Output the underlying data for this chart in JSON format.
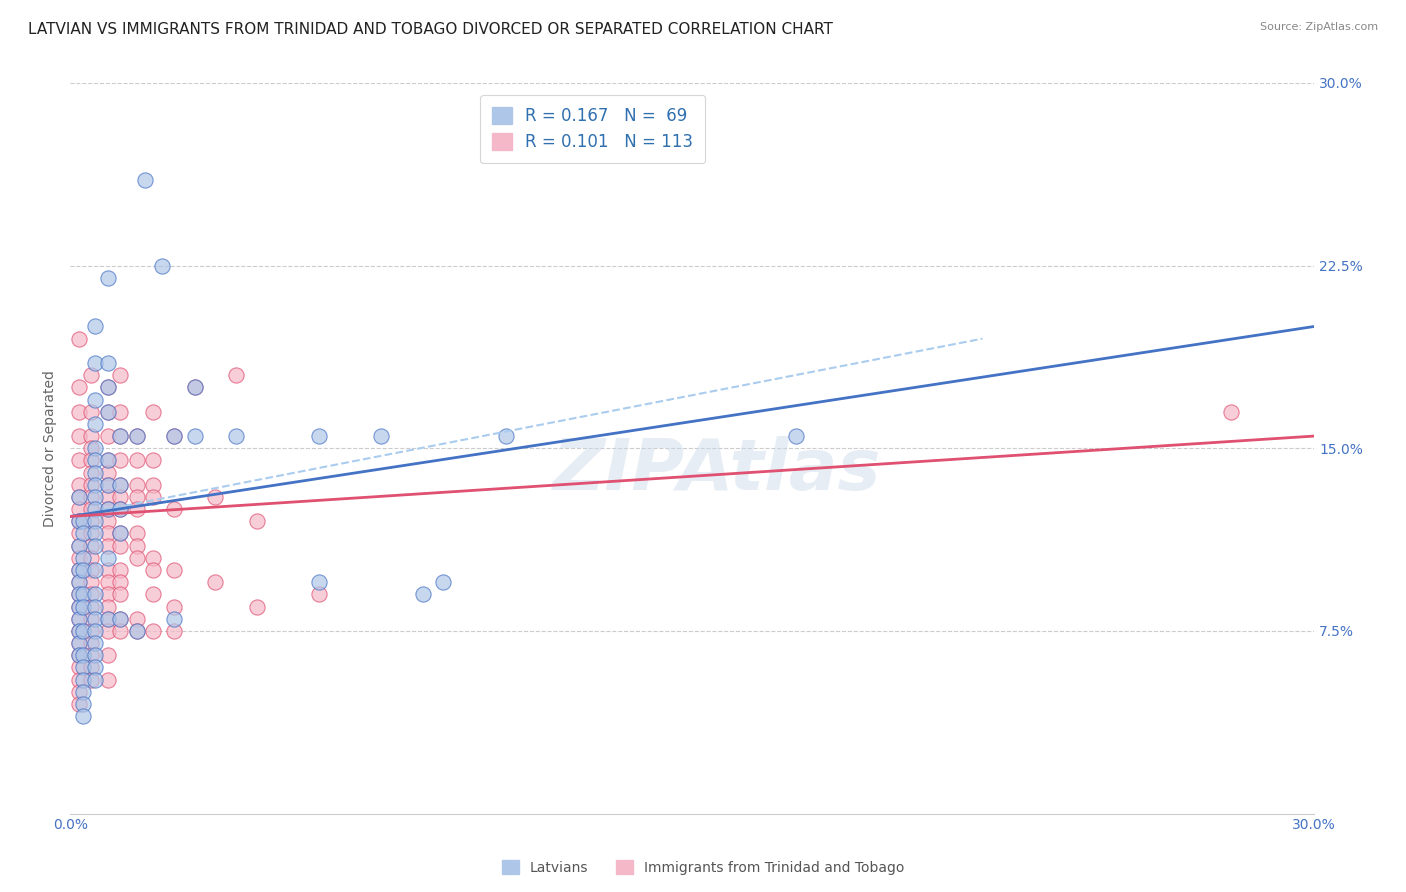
{
  "title": "LATVIAN VS IMMIGRANTS FROM TRINIDAD AND TOBAGO DIVORCED OR SEPARATED CORRELATION CHART",
  "source": "Source: ZipAtlas.com",
  "ylabel": "Divorced or Separated",
  "xlim": [
    0.0,
    0.3
  ],
  "ylim": [
    0.0,
    0.3
  ],
  "watermark": "ZIPAtlas",
  "latvian_points": [
    [
      0.002,
      0.13
    ],
    [
      0.002,
      0.12
    ],
    [
      0.002,
      0.11
    ],
    [
      0.002,
      0.1
    ],
    [
      0.002,
      0.095
    ],
    [
      0.002,
      0.09
    ],
    [
      0.002,
      0.085
    ],
    [
      0.002,
      0.08
    ],
    [
      0.002,
      0.075
    ],
    [
      0.002,
      0.07
    ],
    [
      0.002,
      0.065
    ],
    [
      0.003,
      0.12
    ],
    [
      0.003,
      0.115
    ],
    [
      0.003,
      0.105
    ],
    [
      0.003,
      0.1
    ],
    [
      0.003,
      0.09
    ],
    [
      0.003,
      0.085
    ],
    [
      0.003,
      0.075
    ],
    [
      0.003,
      0.065
    ],
    [
      0.003,
      0.06
    ],
    [
      0.003,
      0.055
    ],
    [
      0.003,
      0.05
    ],
    [
      0.003,
      0.045
    ],
    [
      0.003,
      0.04
    ],
    [
      0.006,
      0.2
    ],
    [
      0.006,
      0.185
    ],
    [
      0.006,
      0.17
    ],
    [
      0.006,
      0.16
    ],
    [
      0.006,
      0.15
    ],
    [
      0.006,
      0.145
    ],
    [
      0.006,
      0.14
    ],
    [
      0.006,
      0.135
    ],
    [
      0.006,
      0.13
    ],
    [
      0.006,
      0.125
    ],
    [
      0.006,
      0.12
    ],
    [
      0.006,
      0.115
    ],
    [
      0.006,
      0.11
    ],
    [
      0.006,
      0.1
    ],
    [
      0.006,
      0.09
    ],
    [
      0.006,
      0.085
    ],
    [
      0.006,
      0.08
    ],
    [
      0.006,
      0.075
    ],
    [
      0.006,
      0.07
    ],
    [
      0.006,
      0.065
    ],
    [
      0.006,
      0.06
    ],
    [
      0.006,
      0.055
    ],
    [
      0.009,
      0.22
    ],
    [
      0.009,
      0.185
    ],
    [
      0.009,
      0.175
    ],
    [
      0.009,
      0.165
    ],
    [
      0.009,
      0.145
    ],
    [
      0.009,
      0.135
    ],
    [
      0.009,
      0.125
    ],
    [
      0.009,
      0.105
    ],
    [
      0.009,
      0.08
    ],
    [
      0.012,
      0.155
    ],
    [
      0.012,
      0.135
    ],
    [
      0.012,
      0.125
    ],
    [
      0.012,
      0.115
    ],
    [
      0.012,
      0.08
    ],
    [
      0.016,
      0.155
    ],
    [
      0.016,
      0.075
    ],
    [
      0.018,
      0.26
    ],
    [
      0.022,
      0.225
    ],
    [
      0.025,
      0.155
    ],
    [
      0.025,
      0.08
    ],
    [
      0.03,
      0.175
    ],
    [
      0.03,
      0.155
    ],
    [
      0.04,
      0.155
    ],
    [
      0.06,
      0.155
    ],
    [
      0.06,
      0.095
    ],
    [
      0.075,
      0.155
    ],
    [
      0.085,
      0.09
    ],
    [
      0.09,
      0.095
    ],
    [
      0.105,
      0.155
    ],
    [
      0.175,
      0.155
    ]
  ],
  "tt_points": [
    [
      0.002,
      0.195
    ],
    [
      0.002,
      0.175
    ],
    [
      0.002,
      0.165
    ],
    [
      0.002,
      0.155
    ],
    [
      0.002,
      0.145
    ],
    [
      0.002,
      0.135
    ],
    [
      0.002,
      0.13
    ],
    [
      0.002,
      0.125
    ],
    [
      0.002,
      0.12
    ],
    [
      0.002,
      0.115
    ],
    [
      0.002,
      0.11
    ],
    [
      0.002,
      0.105
    ],
    [
      0.002,
      0.1
    ],
    [
      0.002,
      0.095
    ],
    [
      0.002,
      0.09
    ],
    [
      0.002,
      0.085
    ],
    [
      0.002,
      0.08
    ],
    [
      0.002,
      0.075
    ],
    [
      0.002,
      0.07
    ],
    [
      0.002,
      0.065
    ],
    [
      0.002,
      0.06
    ],
    [
      0.002,
      0.055
    ],
    [
      0.002,
      0.05
    ],
    [
      0.002,
      0.045
    ],
    [
      0.005,
      0.18
    ],
    [
      0.005,
      0.165
    ],
    [
      0.005,
      0.155
    ],
    [
      0.005,
      0.15
    ],
    [
      0.005,
      0.145
    ],
    [
      0.005,
      0.14
    ],
    [
      0.005,
      0.135
    ],
    [
      0.005,
      0.13
    ],
    [
      0.005,
      0.125
    ],
    [
      0.005,
      0.12
    ],
    [
      0.005,
      0.115
    ],
    [
      0.005,
      0.11
    ],
    [
      0.005,
      0.105
    ],
    [
      0.005,
      0.1
    ],
    [
      0.005,
      0.095
    ],
    [
      0.005,
      0.09
    ],
    [
      0.005,
      0.085
    ],
    [
      0.005,
      0.08
    ],
    [
      0.005,
      0.075
    ],
    [
      0.005,
      0.07
    ],
    [
      0.005,
      0.065
    ],
    [
      0.005,
      0.06
    ],
    [
      0.005,
      0.055
    ],
    [
      0.009,
      0.175
    ],
    [
      0.009,
      0.165
    ],
    [
      0.009,
      0.155
    ],
    [
      0.009,
      0.145
    ],
    [
      0.009,
      0.14
    ],
    [
      0.009,
      0.135
    ],
    [
      0.009,
      0.13
    ],
    [
      0.009,
      0.125
    ],
    [
      0.009,
      0.12
    ],
    [
      0.009,
      0.115
    ],
    [
      0.009,
      0.11
    ],
    [
      0.009,
      0.1
    ],
    [
      0.009,
      0.095
    ],
    [
      0.009,
      0.09
    ],
    [
      0.009,
      0.085
    ],
    [
      0.009,
      0.08
    ],
    [
      0.009,
      0.075
    ],
    [
      0.009,
      0.065
    ],
    [
      0.009,
      0.055
    ],
    [
      0.012,
      0.18
    ],
    [
      0.012,
      0.165
    ],
    [
      0.012,
      0.155
    ],
    [
      0.012,
      0.145
    ],
    [
      0.012,
      0.135
    ],
    [
      0.012,
      0.13
    ],
    [
      0.012,
      0.125
    ],
    [
      0.012,
      0.115
    ],
    [
      0.012,
      0.11
    ],
    [
      0.012,
      0.1
    ],
    [
      0.012,
      0.095
    ],
    [
      0.012,
      0.09
    ],
    [
      0.012,
      0.08
    ],
    [
      0.012,
      0.075
    ],
    [
      0.016,
      0.155
    ],
    [
      0.016,
      0.145
    ],
    [
      0.016,
      0.135
    ],
    [
      0.016,
      0.13
    ],
    [
      0.016,
      0.125
    ],
    [
      0.016,
      0.115
    ],
    [
      0.016,
      0.11
    ],
    [
      0.016,
      0.105
    ],
    [
      0.016,
      0.08
    ],
    [
      0.016,
      0.075
    ],
    [
      0.02,
      0.165
    ],
    [
      0.02,
      0.145
    ],
    [
      0.02,
      0.135
    ],
    [
      0.02,
      0.13
    ],
    [
      0.02,
      0.105
    ],
    [
      0.02,
      0.1
    ],
    [
      0.02,
      0.09
    ],
    [
      0.02,
      0.075
    ],
    [
      0.025,
      0.155
    ],
    [
      0.025,
      0.125
    ],
    [
      0.025,
      0.1
    ],
    [
      0.025,
      0.085
    ],
    [
      0.025,
      0.075
    ],
    [
      0.03,
      0.175
    ],
    [
      0.035,
      0.13
    ],
    [
      0.035,
      0.095
    ],
    [
      0.04,
      0.18
    ],
    [
      0.045,
      0.12
    ],
    [
      0.045,
      0.085
    ],
    [
      0.06,
      0.09
    ],
    [
      0.28,
      0.165
    ]
  ],
  "latvian_color": "#aec6e8",
  "tt_color": "#f4b8c8",
  "latvian_line_color": "#4472c4",
  "tt_line_color": "#e05070",
  "latvian_dash_color": "#9bbbd8",
  "trendline_latvian": [
    [
      0.0,
      0.122
    ],
    [
      0.3,
      0.2
    ]
  ],
  "trendline_tt": [
    [
      0.0,
      0.122
    ],
    [
      0.3,
      0.155
    ]
  ],
  "dash_line": [
    [
      0.0,
      0.122
    ],
    [
      0.22,
      0.195
    ]
  ],
  "background_color": "#ffffff",
  "grid_color": "#cccccc",
  "axis_label_color": "#4472c4",
  "title_fontsize": 11,
  "axis_fontsize": 10
}
